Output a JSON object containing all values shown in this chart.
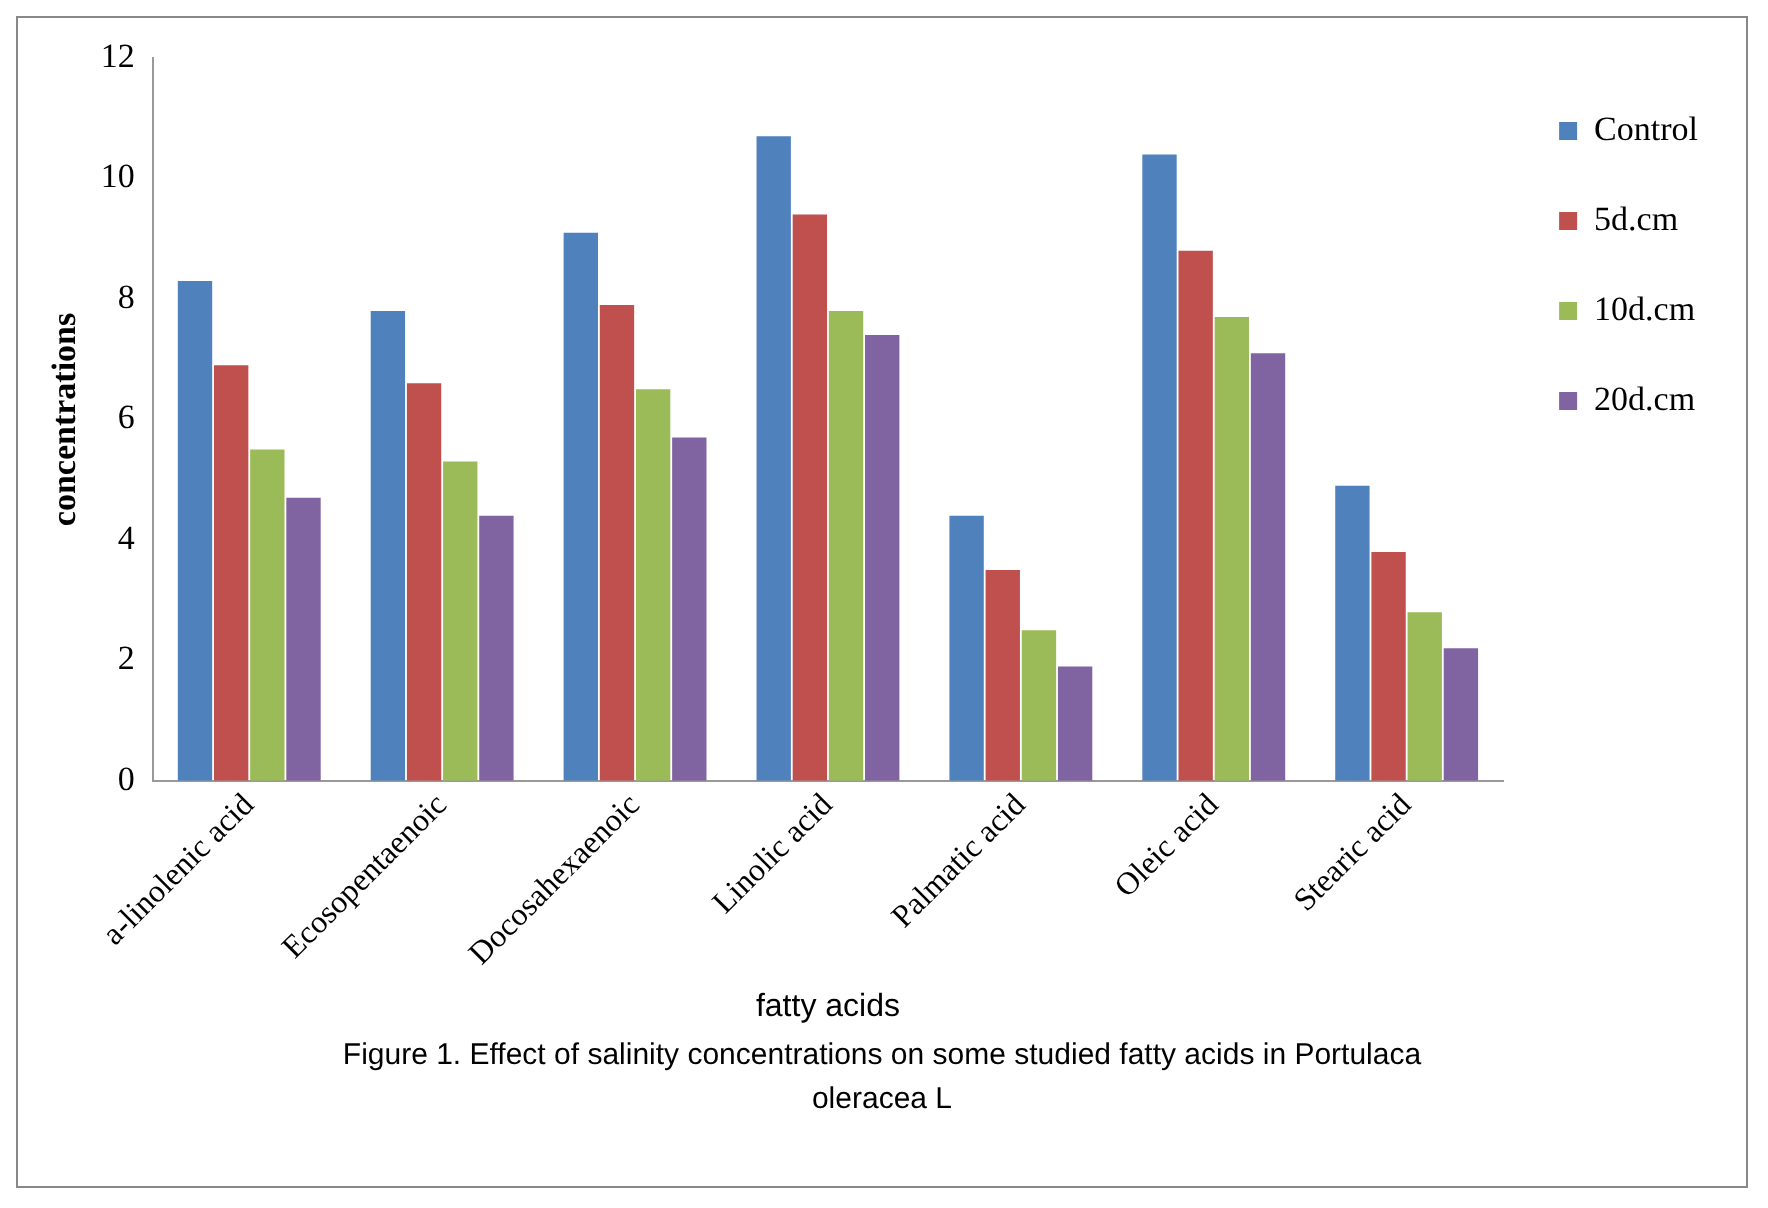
{
  "chart_data": {
    "type": "bar",
    "xlabel": "fatty acids",
    "ylabel": "concentrations",
    "annotations": [
      "Figure 1. Effect of salinity concentrations on some studied fatty acids in  Portulaca oleracea L"
    ],
    "categories": [
      "a-linolenic acid",
      "Ecosopentaenoic",
      "Docosahexaenoic",
      "Linolic acid",
      "Palmatic acid",
      "Oleic acid",
      "Stearic acid"
    ],
    "series": [
      {
        "name": "Control",
        "color": "#4f81bd",
        "values": [
          8.3,
          7.8,
          9.1,
          10.7,
          4.4,
          10.4,
          4.9
        ]
      },
      {
        "name": "5d.cm",
        "color": "#c0504d",
        "values": [
          6.9,
          6.6,
          7.9,
          9.4,
          3.5,
          8.8,
          3.8
        ]
      },
      {
        "name": "10d.cm",
        "color": "#9bbb59",
        "values": [
          5.5,
          5.3,
          6.5,
          7.8,
          2.5,
          7.7,
          2.8
        ]
      },
      {
        "name": "20d.cm",
        "color": "#8064a2",
        "values": [
          4.7,
          4.4,
          5.7,
          7.4,
          1.9,
          7.1,
          2.2
        ]
      }
    ],
    "ylim": [
      0,
      12
    ],
    "yticks": [
      0,
      2,
      4,
      6,
      8,
      10,
      12
    ],
    "grid": false,
    "legend": "right"
  }
}
